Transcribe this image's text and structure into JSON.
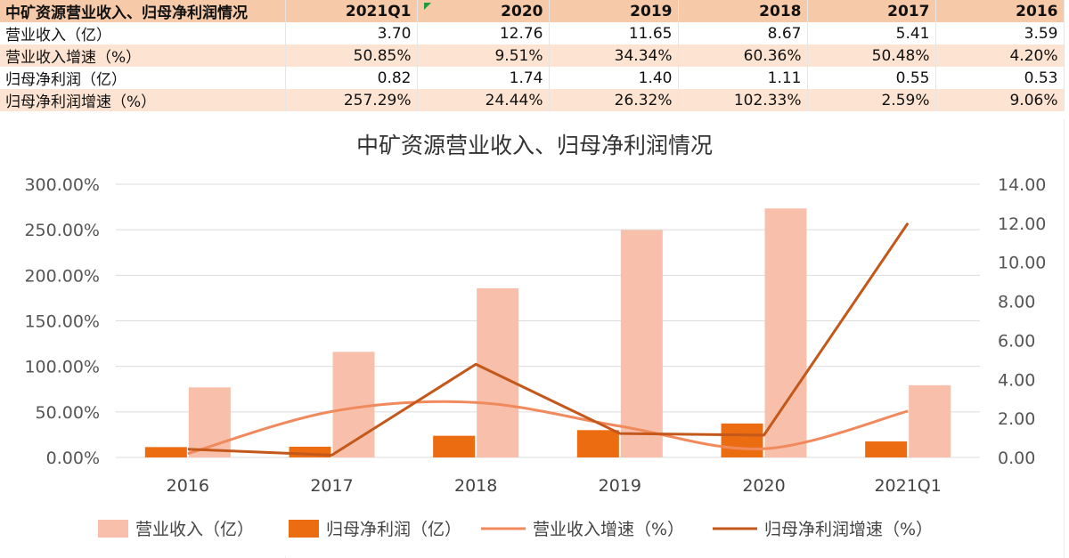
{
  "table": {
    "header": [
      "中矿资源营业收入、归母净利润情况",
      "2021Q1",
      "2020",
      "2019",
      "2018",
      "2017",
      "2016"
    ],
    "rows": [
      {
        "label": "营业收入（亿）",
        "values": [
          "3.70",
          "12.76",
          "11.65",
          "8.67",
          "5.41",
          "3.59"
        ]
      },
      {
        "label": "营业收入增速（%）",
        "values": [
          "50.85%",
          "9.51%",
          "34.34%",
          "60.36%",
          "50.48%",
          "4.20%"
        ]
      },
      {
        "label": "归母净利润（亿）",
        "values": [
          "0.82",
          "1.74",
          "1.40",
          "1.11",
          "0.55",
          "0.53"
        ]
      },
      {
        "label": "归母净利润增速（%）",
        "values": [
          "257.29%",
          "24.44%",
          "26.32%",
          "102.33%",
          "2.59%",
          "9.06%"
        ]
      }
    ]
  },
  "chart_data": {
    "type": "bar",
    "title": "中矿资源营业收入、归母净利润情况",
    "categories": [
      "2016",
      "2017",
      "2018",
      "2019",
      "2020",
      "2021Q1"
    ],
    "y_left": {
      "ticks": [
        "0.00%",
        "50.00%",
        "100.00%",
        "150.00%",
        "200.00%",
        "250.00%",
        "300.00%"
      ],
      "range": [
        0,
        300
      ]
    },
    "y_right": {
      "ticks": [
        "0.00",
        "2.00",
        "4.00",
        "6.00",
        "8.00",
        "10.00",
        "12.00",
        "14.00"
      ],
      "range": [
        0,
        14
      ]
    },
    "series": [
      {
        "name": "营业收入（亿）",
        "type": "bar",
        "axis": "right",
        "color": "#f8c0ab",
        "values": [
          3.59,
          5.41,
          8.67,
          11.65,
          12.76,
          3.7
        ]
      },
      {
        "name": "归母净利润（亿）",
        "type": "bar",
        "axis": "right",
        "color": "#ec6c12",
        "values": [
          0.53,
          0.55,
          1.11,
          1.4,
          1.74,
          0.82
        ]
      },
      {
        "name": "营业收入增速（%）",
        "type": "smooth-line",
        "axis": "left",
        "color": "#f08a5d",
        "values": [
          4.2,
          50.48,
          60.36,
          34.34,
          9.51,
          50.85
        ]
      },
      {
        "name": "归母净利润增速（%）",
        "type": "line",
        "axis": "left",
        "color": "#c3581a",
        "values": [
          9.06,
          2.59,
          102.33,
          26.32,
          24.44,
          257.29
        ]
      }
    ],
    "legend_position": "bottom",
    "grid": true
  }
}
